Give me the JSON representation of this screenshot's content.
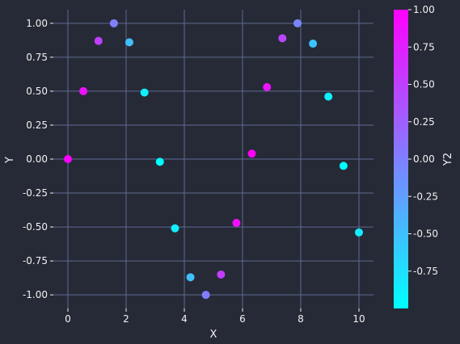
{
  "chart_data": {
    "type": "scatter",
    "xlabel": "X",
    "ylabel": "Y",
    "colorbar_label": "Y2",
    "xlim": [
      -0.5,
      10.5
    ],
    "ylim": [
      -1.1,
      1.1
    ],
    "xticks": [
      0,
      2,
      4,
      6,
      8,
      10
    ],
    "yticks": [
      -1.0,
      -0.75,
      -0.5,
      -0.25,
      0.0,
      0.25,
      0.5,
      0.75,
      1.0
    ],
    "colorbar_range": [
      -1.0,
      1.0
    ],
    "colorbar_ticks": [
      -0.75,
      -0.5,
      -0.25,
      0.0,
      0.25,
      0.5,
      0.75,
      1.0
    ],
    "colormap": "cool",
    "colormap_low": "#00ffff",
    "colormap_high": "#ff00ff",
    "grid": true,
    "background_color": "#262a36",
    "grid_color": "#5e6a91",
    "points": [
      {
        "x": 0.0,
        "y": 0.0,
        "y2": 1.0
      },
      {
        "x": 0.53,
        "y": 0.5,
        "y2": 0.87
      },
      {
        "x": 1.05,
        "y": 0.87,
        "y2": 0.5
      },
      {
        "x": 1.58,
        "y": 1.0,
        "y2": 0.0
      },
      {
        "x": 2.11,
        "y": 0.86,
        "y2": -0.5
      },
      {
        "x": 2.63,
        "y": 0.49,
        "y2": -0.87
      },
      {
        "x": 3.16,
        "y": -0.02,
        "y2": -1.0
      },
      {
        "x": 3.68,
        "y": -0.51,
        "y2": -0.86
      },
      {
        "x": 4.21,
        "y": -0.87,
        "y2": -0.49
      },
      {
        "x": 4.74,
        "y": -1.0,
        "y2": 0.02
      },
      {
        "x": 5.26,
        "y": -0.85,
        "y2": 0.52
      },
      {
        "x": 5.79,
        "y": -0.47,
        "y2": 0.88
      },
      {
        "x": 6.32,
        "y": 0.04,
        "y2": 1.0
      },
      {
        "x": 6.84,
        "y": 0.53,
        "y2": 0.85
      },
      {
        "x": 7.37,
        "y": 0.89,
        "y2": 0.46
      },
      {
        "x": 7.89,
        "y": 1.0,
        "y2": -0.05
      },
      {
        "x": 8.42,
        "y": 0.85,
        "y2": -0.54
      },
      {
        "x": 8.95,
        "y": 0.46,
        "y2": -0.89
      },
      {
        "x": 9.47,
        "y": -0.05,
        "y2": -1.0
      },
      {
        "x": 10.0,
        "y": -0.54,
        "y2": -0.84
      }
    ]
  }
}
